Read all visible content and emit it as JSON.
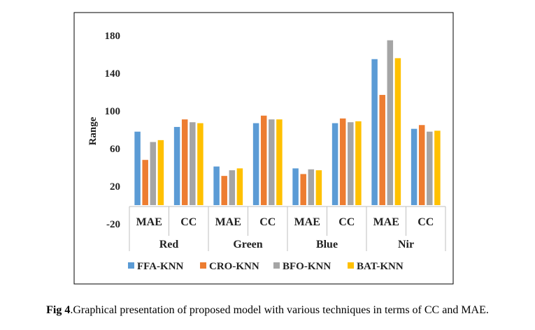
{
  "chart_data": {
    "type": "bar",
    "ylabel": "Range",
    "ylim": [
      -20,
      180
    ],
    "yticks": [
      -20,
      20,
      60,
      100,
      140,
      180
    ],
    "grid": false,
    "legend_position": "bottom",
    "groups": [
      "Red",
      "Green",
      "Blue",
      "Nir"
    ],
    "metrics": [
      "MAE",
      "CC"
    ],
    "categories": [
      "Red MAE",
      "Red CC",
      "Green MAE",
      "Green CC",
      "Blue MAE",
      "Blue CC",
      "Nir MAE",
      "Nir CC"
    ],
    "series": [
      {
        "name": "FFA-KNN",
        "color": "#5B9BD5",
        "values": [
          78,
          83,
          41,
          87,
          39,
          87,
          155,
          81
        ]
      },
      {
        "name": "CRO-KNN",
        "color": "#ED7D31",
        "values": [
          48,
          91,
          31,
          95,
          33,
          92,
          117,
          85
        ]
      },
      {
        "name": "BFO-KNN",
        "color": "#A5A5A5",
        "values": [
          67,
          88,
          37,
          91,
          38,
          88,
          175,
          78
        ]
      },
      {
        "name": "BAT-KNN",
        "color": "#FFC000",
        "values": [
          69,
          87,
          39,
          91,
          37,
          89,
          156,
          79
        ]
      }
    ]
  },
  "caption": {
    "label": "Fig 4",
    "text": ".Graphical presentation of proposed model with various techniques in terms of CC and MAE."
  }
}
